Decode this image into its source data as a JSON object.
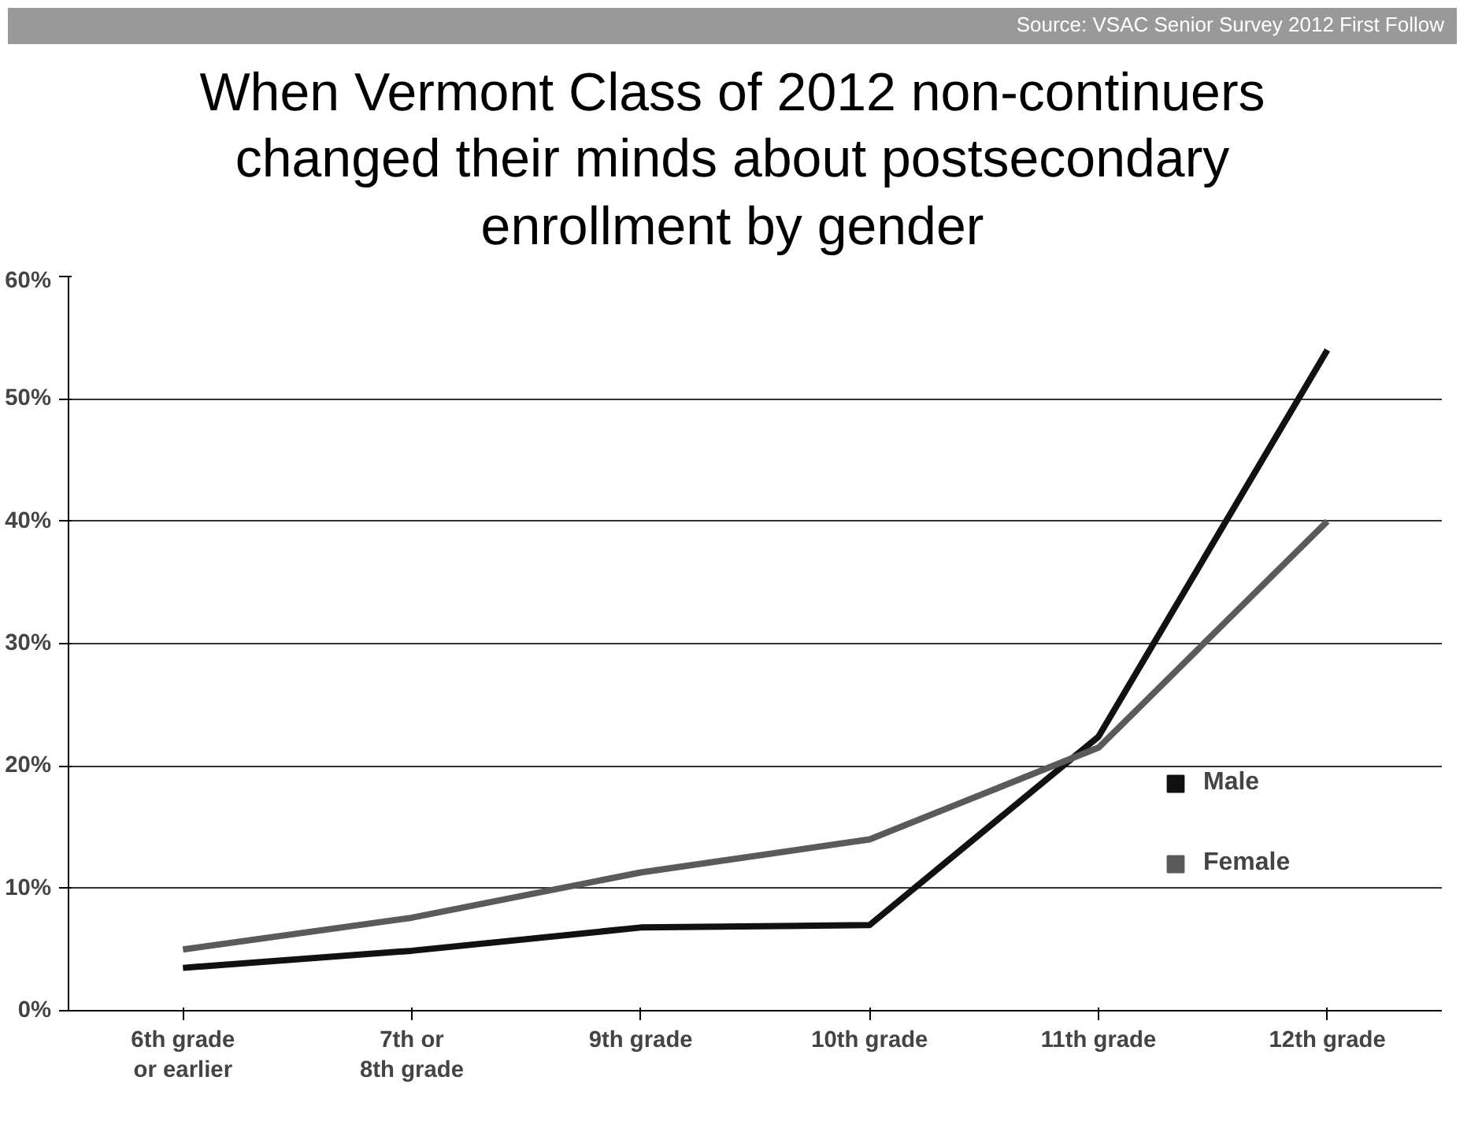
{
  "chart_data": {
    "type": "line",
    "title": "When Vermont Class of 2012 non-continuers changed their minds about postsecondary enrollment by gender",
    "annotations": [
      "Source: VSAC Senior Survey 2012 First Follow"
    ],
    "categories": [
      "6th grade or earlier",
      "7th or 8th grade",
      "9th grade",
      "10th grade",
      "11th grade",
      "12th grade"
    ],
    "series": [
      {
        "name": "Male",
        "color": "#111111",
        "values": [
          3.5,
          4.9,
          6.8,
          7,
          22.4,
          54
        ]
      },
      {
        "name": "Female",
        "color": "#5a5a5a",
        "values": [
          5,
          7.6,
          11.3,
          14,
          21.5,
          40
        ]
      }
    ],
    "ylim": [
      0,
      60
    ],
    "yticks": [
      {
        "value": 0,
        "label": "0%"
      },
      {
        "value": 10,
        "label": "10%"
      },
      {
        "value": 20,
        "label": "20%"
      },
      {
        "value": 30,
        "label": "30%"
      },
      {
        "value": 40,
        "label": "40%"
      },
      {
        "value": 50,
        "label": "50%"
      },
      {
        "value": 60,
        "label": "60%"
      }
    ],
    "grid": "y",
    "legend": "right",
    "marker": "none",
    "line_style": "solid"
  }
}
